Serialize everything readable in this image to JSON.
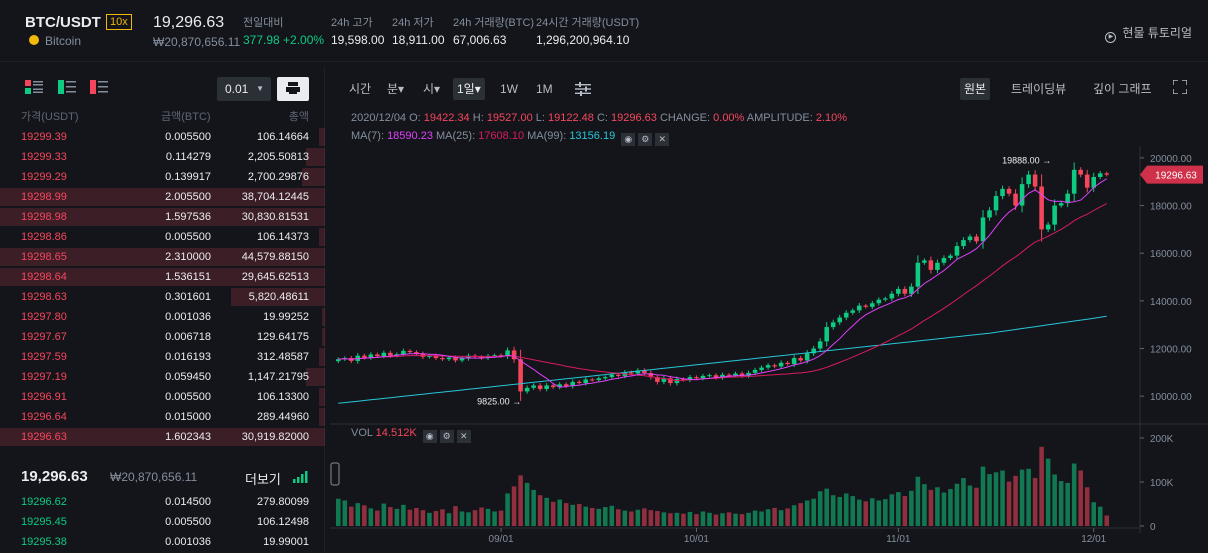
{
  "header": {
    "pair": "BTC/USDT",
    "leverage": "10x",
    "coin_name": "Bitcoin",
    "last_price": "19,296.63",
    "last_price_krw": "₩20,870,656.11",
    "stats": [
      {
        "label": "전일대비",
        "value": "377.98 +2.00%",
        "color": "#0ecb81"
      },
      {
        "label": "24h 고가",
        "value": "19,598.00"
      },
      {
        "label": "24h 저가",
        "value": "18,911.00"
      },
      {
        "label": "24h 거래량(BTC)",
        "value": "67,006.63"
      },
      {
        "label": "24시간 거래량(USDT)",
        "value": "1,296,200,964.10"
      }
    ],
    "tutorial": "현물 튜토리얼"
  },
  "orderbook": {
    "precision": "0.01",
    "columns": {
      "price": "가격(USDT)",
      "amount": "금액(BTC)",
      "total": "총액"
    },
    "asks": [
      {
        "price": "19299.39",
        "amount": "0.005500",
        "total": "106.14664",
        "depth": 0.02
      },
      {
        "price": "19299.33",
        "amount": "0.114279",
        "total": "2,205.50813",
        "depth": 0.06
      },
      {
        "price": "19299.29",
        "amount": "0.139917",
        "total": "2,700.29876",
        "depth": 0.07
      },
      {
        "price": "19298.99",
        "amount": "2.005500",
        "total": "38,704.12445",
        "depth": 1.0
      },
      {
        "price": "19298.98",
        "amount": "1.597536",
        "total": "30,830.81531",
        "depth": 1.0
      },
      {
        "price": "19298.86",
        "amount": "0.005500",
        "total": "106.14373",
        "depth": 0.02
      },
      {
        "price": "19298.65",
        "amount": "2.310000",
        "total": "44,579.88150",
        "depth": 1.0
      },
      {
        "price": "19298.64",
        "amount": "1.536151",
        "total": "29,645.62513",
        "depth": 1.0
      },
      {
        "price": "19298.63",
        "amount": "0.301601",
        "total": "5,820.48611",
        "depth": 0.29
      },
      {
        "price": "19297.80",
        "amount": "0.001036",
        "total": "19.99252",
        "depth": 0.01
      },
      {
        "price": "19297.67",
        "amount": "0.006718",
        "total": "129.64175",
        "depth": 0.01
      },
      {
        "price": "19297.59",
        "amount": "0.016193",
        "total": "312.48587",
        "depth": 0.02
      },
      {
        "price": "19297.19",
        "amount": "0.059450",
        "total": "1,147.21795",
        "depth": 0.06
      },
      {
        "price": "19296.91",
        "amount": "0.005500",
        "total": "106.13300",
        "depth": 0.02
      },
      {
        "price": "19296.64",
        "amount": "0.015000",
        "total": "289.44960",
        "depth": 0.02
      },
      {
        "price": "19296.63",
        "amount": "1.602343",
        "total": "30,919.82000",
        "depth": 1.0
      }
    ],
    "mid_price": "19,296.63",
    "mid_price_krw": "₩20,870,656.11",
    "more_label": "더보기",
    "bids": [
      {
        "price": "19296.62",
        "amount": "0.014500",
        "total": "279.80099",
        "depth": 0.0
      },
      {
        "price": "19295.45",
        "amount": "0.005500",
        "total": "106.12498",
        "depth": 0.0
      },
      {
        "price": "19295.38",
        "amount": "0.001036",
        "total": "19.99001",
        "depth": 0.0
      }
    ]
  },
  "chart_toolbar": {
    "timeframes": [
      {
        "label": "시간"
      },
      {
        "label": "분▾"
      },
      {
        "label": "시▾"
      },
      {
        "label": "1일▾",
        "active": true
      },
      {
        "label": "1W"
      },
      {
        "label": "1M"
      }
    ],
    "views": [
      {
        "label": "원본",
        "active": true
      },
      {
        "label": "트레이딩뷰"
      },
      {
        "label": "깊이 그래프"
      }
    ]
  },
  "ohlc": {
    "date": "2020/12/04",
    "open": "19422.34",
    "high": "19527.00",
    "low": "19122.48",
    "close": "19296.63",
    "change": "0.00%",
    "amplitude": "2.10%",
    "ma7": "18590.23",
    "ma25": "17608.10",
    "ma99": "13156.19",
    "vol": "14.512K"
  },
  "chart_data": {
    "type": "candlestick",
    "price_axis": {
      "min": 9000,
      "max": 20500,
      "ticks": [
        "20000.00",
        "18000.00",
        "16000.00",
        "14000.00",
        "12000.00",
        "10000.00"
      ]
    },
    "volume_axis": {
      "max": 200000,
      "ticks": [
        "200K",
        "100K",
        "0"
      ]
    },
    "x_ticks": [
      "09/01",
      "10/01",
      "11/01",
      "12/01"
    ],
    "last_price_label": "19296.63",
    "high_marker": "19888.00",
    "low_marker": "9825.00",
    "ma_colors": {
      "ma7": "#e040fb",
      "ma25": "#d81b60",
      "ma99": "#26c6da"
    },
    "closes": [
      11550,
      11600,
      11480,
      11700,
      11620,
      11750,
      11680,
      11820,
      11700,
      11760,
      11900,
      11850,
      11780,
      11650,
      11700,
      11600,
      11550,
      11620,
      11500,
      11580,
      11700,
      11650,
      11600,
      11690,
      11720,
      11680,
      11920,
      11550,
      10200,
      10350,
      10450,
      10300,
      10450,
      10380,
      10500,
      10420,
      10600,
      10550,
      10700,
      10680,
      10750,
      10800,
      10900,
      10850,
      11000,
      10950,
      11080,
      10970,
      10800,
      10600,
      10750,
      10550,
      10720,
      10680,
      10800,
      10750,
      10850,
      10880,
      10780,
      10900,
      10870,
      10950,
      10850,
      10980,
      11100,
      11200,
      11300,
      11250,
      11400,
      11350,
      11600,
      11500,
      11800,
      12000,
      12300,
      12900,
      13100,
      13300,
      13500,
      13600,
      13800,
      13750,
      13900,
      14050,
      14100,
      14300,
      14500,
      14300,
      14600,
      15600,
      15700,
      15300,
      15600,
      15800,
      15900,
      16300,
      16550,
      16700,
      16500,
      17500,
      17800,
      18400,
      18700,
      18500,
      18000,
      18900,
      19300,
      18800,
      17000,
      17200,
      18000,
      18100,
      18500,
      19500,
      19300,
      18750,
      19200,
      19350,
      19297
    ],
    "volumes": [
      62000,
      58000,
      44000,
      52000,
      47000,
      40000,
      35000,
      51000,
      43000,
      39000,
      48000,
      37000,
      41000,
      36000,
      30000,
      34000,
      38000,
      29000,
      45000,
      33000,
      31000,
      36000,
      42000,
      39000,
      33000,
      35000,
      74000,
      90000,
      115000,
      98000,
      82000,
      70000,
      64000,
      55000,
      60000,
      52000,
      48000,
      50000,
      44000,
      41000,
      39000,
      43000,
      46000,
      38000,
      35000,
      33000,
      37000,
      40000,
      36000,
      34000,
      31000,
      29000,
      30000,
      28000,
      32000,
      27000,
      33000,
      30000,
      26000,
      29000,
      31000,
      28000,
      27000,
      30000,
      35000,
      33000,
      38000,
      41000,
      36000,
      40000,
      47000,
      52000,
      58000,
      62000,
      79000,
      85000,
      70000,
      66000,
      74000,
      68000,
      60000,
      56000,
      63000,
      58000,
      61000,
      72000,
      77000,
      68000,
      80000,
      112000,
      95000,
      82000,
      88000,
      76000,
      84000,
      96000,
      109000,
      92000,
      87000,
      135000,
      118000,
      122000,
      126000,
      101000,
      114000,
      128000,
      130000,
      109000,
      180000,
      153000,
      117000,
      102000,
      98000,
      142000,
      126000,
      88000,
      54000,
      44000,
      24000
    ]
  }
}
